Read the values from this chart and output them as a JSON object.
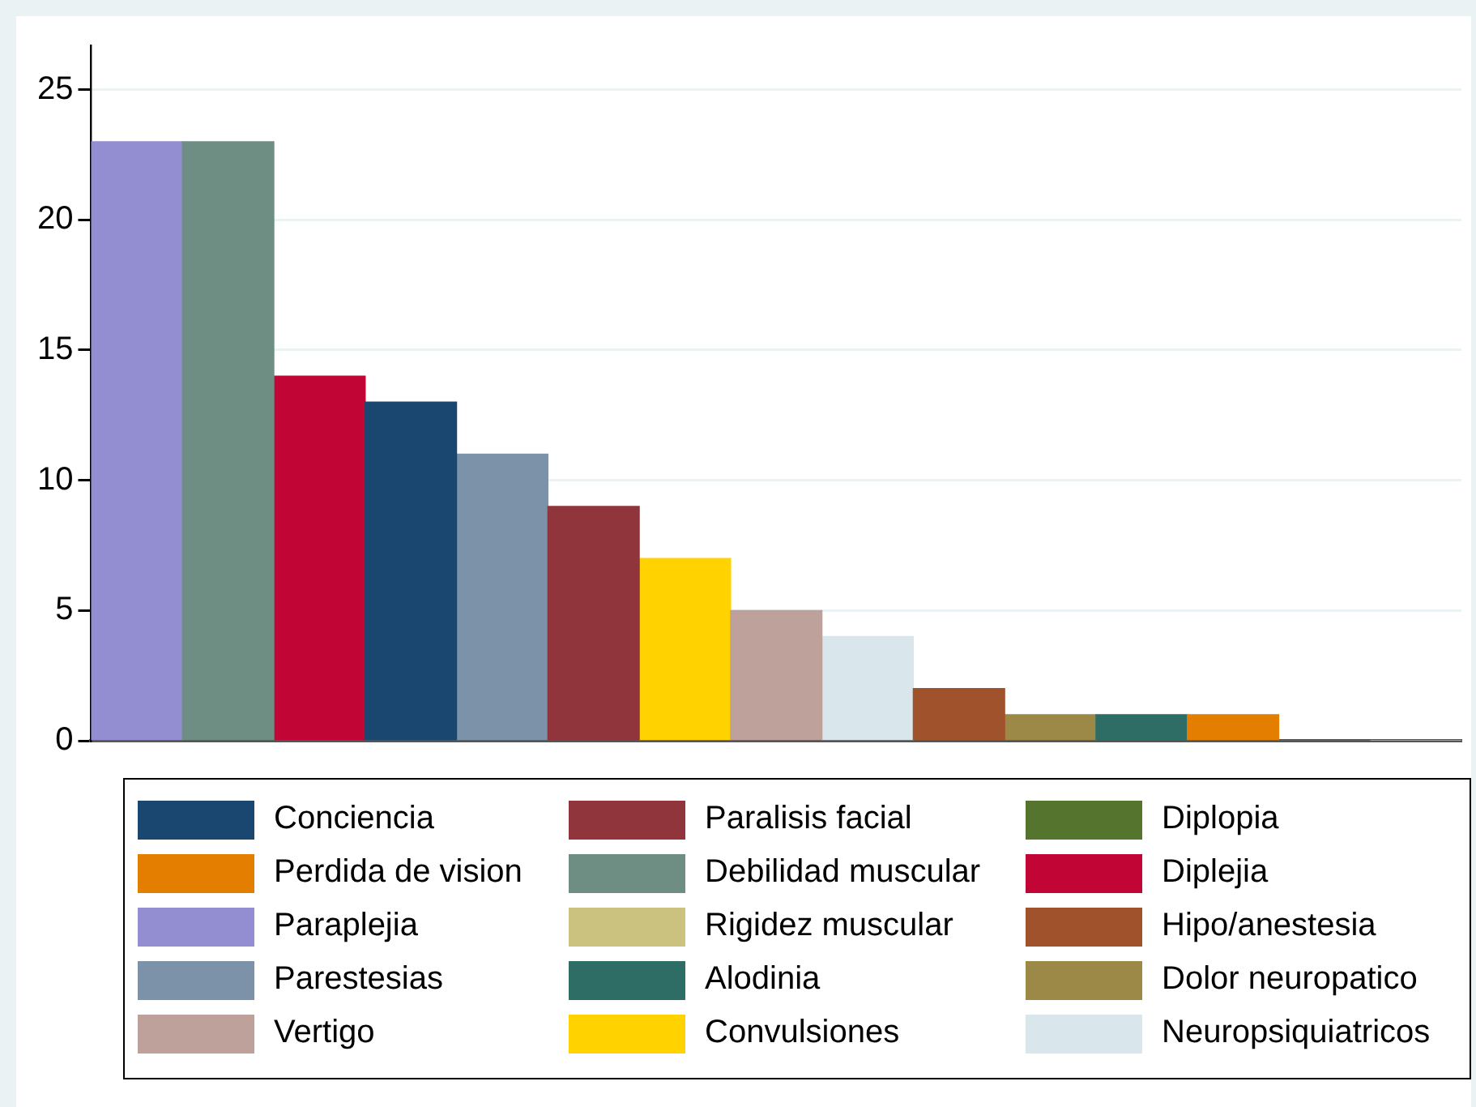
{
  "chart_data": {
    "type": "bar",
    "categories": [
      null,
      null,
      null,
      null,
      null,
      null,
      null,
      null,
      null,
      null,
      null,
      null,
      null,
      null,
      null
    ],
    "ylim": [
      0,
      26.7
    ],
    "yticks": [
      0,
      5,
      10,
      15,
      20,
      25
    ],
    "grid": "y",
    "legend": "bottom",
    "tick_labels": "y",
    "series": [
      {
        "name": "Conciencia",
        "color": "#1a476f",
        "values": [
          null,
          null,
          null,
          13,
          null,
          null,
          null,
          null,
          null,
          null,
          null,
          null,
          null,
          null,
          null
        ]
      },
      {
        "name": "Paralisis facial",
        "color": "#90353b",
        "values": [
          null,
          null,
          null,
          null,
          null,
          9,
          null,
          null,
          null,
          null,
          null,
          null,
          null,
          null,
          null
        ]
      },
      {
        "name": "Diplopia",
        "color": "#55752f",
        "values": [
          null,
          null,
          null,
          null,
          null,
          null,
          null,
          null,
          null,
          null,
          null,
          null,
          null,
          0,
          null
        ]
      },
      {
        "name": "Perdida de vision",
        "color": "#e37e00",
        "values": [
          null,
          null,
          null,
          null,
          null,
          null,
          null,
          null,
          null,
          null,
          null,
          null,
          1,
          null,
          null
        ]
      },
      {
        "name": "Debilidad muscular",
        "color": "#6e8e84",
        "values": [
          null,
          23,
          null,
          null,
          null,
          null,
          null,
          null,
          null,
          null,
          null,
          null,
          null,
          null,
          null
        ]
      },
      {
        "name": "Diplejia",
        "color": "#c10534",
        "values": [
          null,
          null,
          14,
          null,
          null,
          null,
          null,
          null,
          null,
          null,
          null,
          null,
          null,
          null,
          null
        ]
      },
      {
        "name": "Paraplejia",
        "color": "#938dd2",
        "values": [
          23,
          null,
          null,
          null,
          null,
          null,
          null,
          null,
          null,
          null,
          null,
          null,
          null,
          null,
          null
        ]
      },
      {
        "name": "Rigidez muscular",
        "color": "#cac27e",
        "values": [
          null,
          null,
          null,
          null,
          null,
          null,
          null,
          null,
          null,
          null,
          null,
          null,
          null,
          null,
          0
        ]
      },
      {
        "name": "Hipo/anestesia",
        "color": "#a0522d",
        "values": [
          null,
          null,
          null,
          null,
          null,
          null,
          null,
          null,
          null,
          2,
          null,
          null,
          null,
          null,
          null
        ]
      },
      {
        "name": "Parestesias",
        "color": "#7b92a8",
        "values": [
          null,
          null,
          null,
          null,
          11,
          null,
          null,
          null,
          null,
          null,
          null,
          null,
          null,
          null,
          null
        ]
      },
      {
        "name": "Alodinia",
        "color": "#2d6d66",
        "values": [
          null,
          null,
          null,
          null,
          null,
          null,
          null,
          null,
          null,
          null,
          null,
          1,
          null,
          null,
          null
        ]
      },
      {
        "name": "Dolor neuropatico",
        "color": "#9c8847",
        "values": [
          null,
          null,
          null,
          null,
          null,
          null,
          null,
          null,
          null,
          null,
          1,
          null,
          null,
          null,
          null
        ]
      },
      {
        "name": "Vertigo",
        "color": "#bfa19c",
        "values": [
          null,
          null,
          null,
          null,
          null,
          null,
          null,
          5,
          null,
          null,
          null,
          null,
          null,
          null,
          null
        ]
      },
      {
        "name": "Convulsiones",
        "color": "#ffd200",
        "values": [
          null,
          null,
          null,
          null,
          null,
          null,
          7,
          null,
          null,
          null,
          null,
          null,
          null,
          null,
          null
        ]
      },
      {
        "name": "Neuropsiquiatricos",
        "color": "#d9e6eb",
        "values": [
          null,
          null,
          null,
          null,
          null,
          null,
          null,
          null,
          4,
          null,
          null,
          null,
          null,
          null,
          null
        ]
      }
    ]
  }
}
